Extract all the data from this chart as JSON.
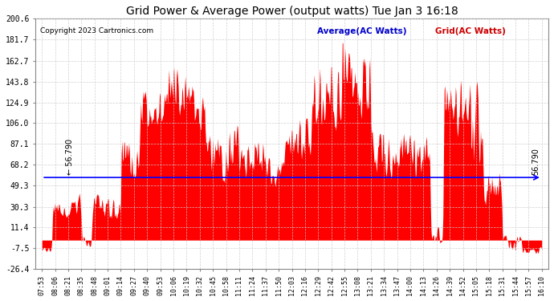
{
  "title": "Grid Power & Average Power (output watts) Tue Jan 3 16:18",
  "copyright": "Copyright 2023 Cartronics.com",
  "legend_avg": "Average(AC Watts)",
  "legend_grid": "Grid(AC Watts)",
  "average_value": 56.79,
  "yticks": [
    200.6,
    181.7,
    162.7,
    143.8,
    124.9,
    106.0,
    87.1,
    68.2,
    49.3,
    30.3,
    11.4,
    -7.5,
    -26.4
  ],
  "ymin": -26.4,
  "ymax": 200.6,
  "bg_color": "#ffffff",
  "grid_color": "#aaaaaa",
  "fill_color": "#ff0000",
  "line_color": "#0000ff",
  "avg_label_color": "#0000cc",
  "grid_label_color": "#cc0000",
  "title_color": "#000000",
  "xtick_labels": [
    "07:53",
    "08:06",
    "08:21",
    "08:35",
    "08:48",
    "09:01",
    "09:14",
    "09:27",
    "09:40",
    "09:53",
    "10:06",
    "10:19",
    "10:32",
    "10:45",
    "10:58",
    "11:11",
    "11:24",
    "11:37",
    "11:50",
    "12:03",
    "12:16",
    "12:29",
    "12:42",
    "12:55",
    "13:08",
    "13:21",
    "13:34",
    "13:47",
    "14:00",
    "14:13",
    "14:26",
    "14:39",
    "14:52",
    "15:05",
    "15:18",
    "15:31",
    "15:44",
    "15:57",
    "16:10"
  ]
}
